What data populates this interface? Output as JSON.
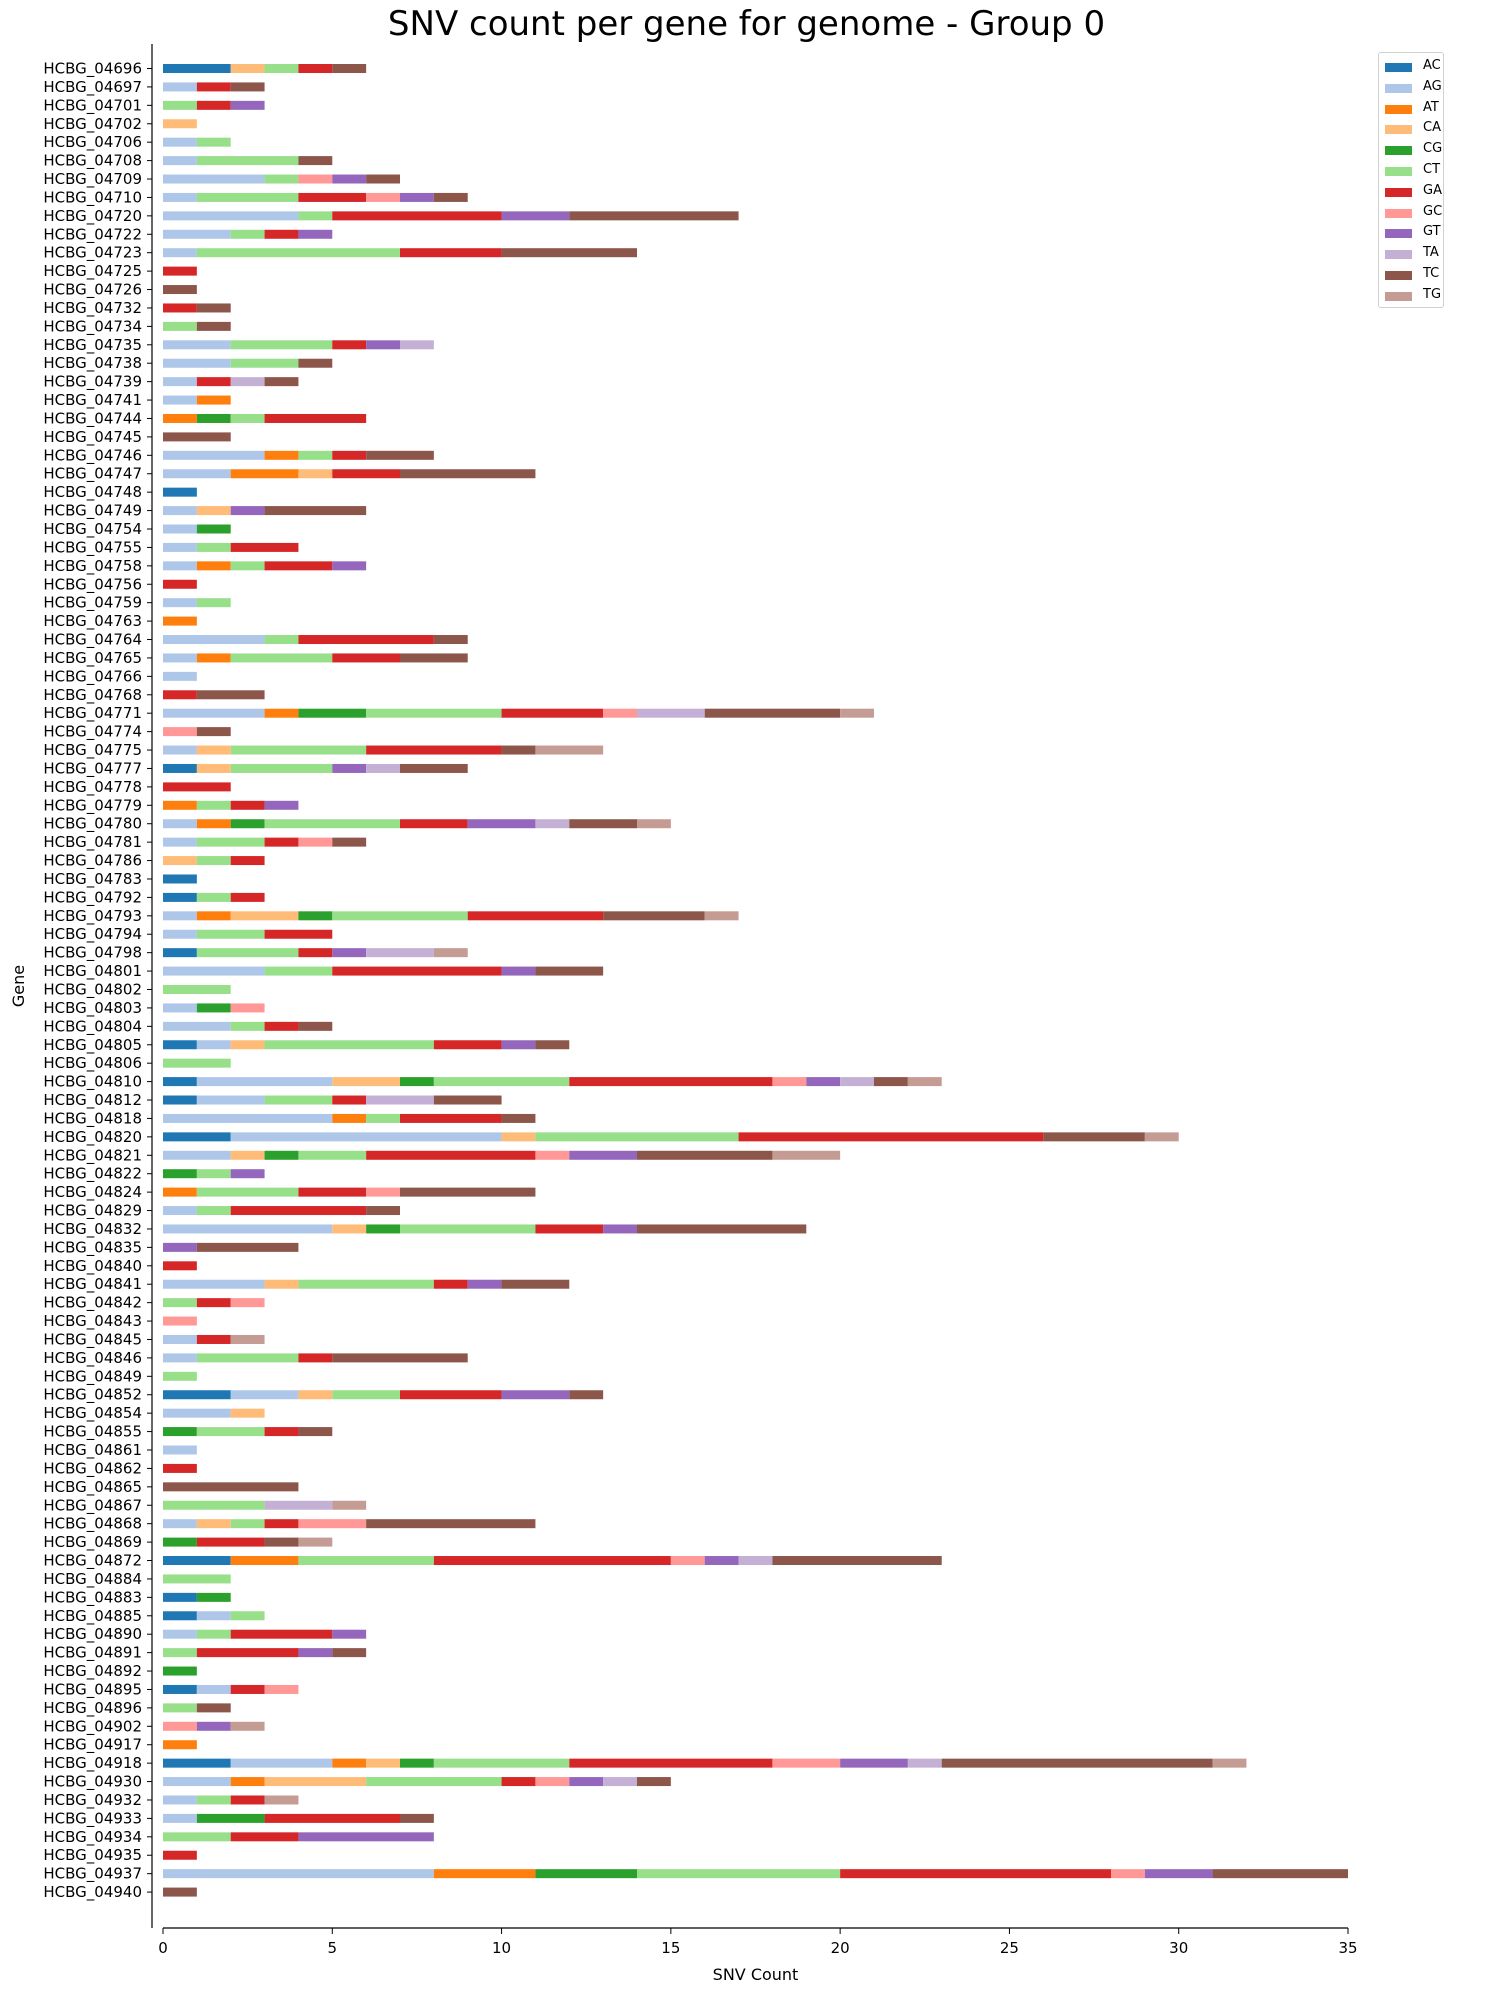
{
  "chart_data": {
    "type": "bar",
    "orientation": "horizontal",
    "stacked": true,
    "title": "SNV count per gene for genome - Group 0",
    "xlabel": "SNV Count",
    "ylabel": "Gene",
    "xlim": [
      0,
      35
    ],
    "xticks": [
      0,
      5,
      10,
      15,
      20,
      25,
      30,
      35
    ],
    "grid": false,
    "legend_position": "top-right",
    "series_order": [
      "AC",
      "AG",
      "AT",
      "CA",
      "CG",
      "CT",
      "GA",
      "GC",
      "GT",
      "TA",
      "TC",
      "TG"
    ],
    "colors": {
      "AC": "#1f77b4",
      "AG": "#aec7e8",
      "AT": "#ff7f0e",
      "CA": "#ffbb78",
      "CG": "#2ca02c",
      "CT": "#98df8a",
      "GA": "#d62728",
      "GC": "#ff9896",
      "GT": "#9467bd",
      "TA": "#c5b0d5",
      "TC": "#8c564b",
      "TG": "#c49c94"
    },
    "genes": [
      {
        "name": "HCBG_04696",
        "counts": {
          "AC": 2,
          "CA": 1,
          "CT": 1,
          "GA": 1,
          "TC": 1
        }
      },
      {
        "name": "HCBG_04697",
        "counts": {
          "AG": 1,
          "GA": 1,
          "TC": 1
        }
      },
      {
        "name": "HCBG_04701",
        "counts": {
          "CT": 1,
          "GA": 1,
          "GT": 1
        }
      },
      {
        "name": "HCBG_04702",
        "counts": {
          "CA": 1
        }
      },
      {
        "name": "HCBG_04706",
        "counts": {
          "AG": 1,
          "CT": 1
        }
      },
      {
        "name": "HCBG_04708",
        "counts": {
          "AG": 1,
          "CT": 3,
          "TC": 1
        }
      },
      {
        "name": "HCBG_04709",
        "counts": {
          "AG": 3,
          "CT": 1,
          "GC": 1,
          "GT": 1,
          "TC": 1
        }
      },
      {
        "name": "HCBG_04710",
        "counts": {
          "AG": 1,
          "CT": 3,
          "GA": 2,
          "GC": 1,
          "GT": 1,
          "TC": 1
        }
      },
      {
        "name": "HCBG_04720",
        "counts": {
          "AG": 4,
          "CT": 1,
          "GA": 5,
          "GT": 2,
          "TC": 5
        }
      },
      {
        "name": "HCBG_04722",
        "counts": {
          "AG": 2,
          "CT": 1,
          "GA": 1,
          "GT": 1
        }
      },
      {
        "name": "HCBG_04723",
        "counts": {
          "AG": 1,
          "CT": 6,
          "GA": 3,
          "TC": 4
        }
      },
      {
        "name": "HCBG_04725",
        "counts": {
          "GA": 1
        }
      },
      {
        "name": "HCBG_04726",
        "counts": {
          "TC": 1
        }
      },
      {
        "name": "HCBG_04732",
        "counts": {
          "GA": 1,
          "TC": 1
        }
      },
      {
        "name": "HCBG_04734",
        "counts": {
          "CT": 1,
          "TC": 1
        }
      },
      {
        "name": "HCBG_04735",
        "counts": {
          "AG": 2,
          "CT": 3,
          "GA": 1,
          "GT": 1,
          "TA": 1
        }
      },
      {
        "name": "HCBG_04738",
        "counts": {
          "AG": 2,
          "CT": 2,
          "TC": 1
        }
      },
      {
        "name": "HCBG_04739",
        "counts": {
          "AG": 1,
          "GA": 1,
          "TA": 1,
          "TC": 1
        }
      },
      {
        "name": "HCBG_04741",
        "counts": {
          "AG": 1,
          "AT": 1
        }
      },
      {
        "name": "HCBG_04744",
        "counts": {
          "AT": 1,
          "CG": 1,
          "CT": 1,
          "GA": 3
        }
      },
      {
        "name": "HCBG_04745",
        "counts": {
          "TC": 2
        }
      },
      {
        "name": "HCBG_04746",
        "counts": {
          "AG": 3,
          "AT": 1,
          "CT": 1,
          "GA": 1,
          "TC": 2
        }
      },
      {
        "name": "HCBG_04747",
        "counts": {
          "AG": 2,
          "AT": 2,
          "CA": 1,
          "GA": 2,
          "TC": 4
        }
      },
      {
        "name": "HCBG_04748",
        "counts": {
          "AC": 1
        }
      },
      {
        "name": "HCBG_04749",
        "counts": {
          "AG": 1,
          "CA": 1,
          "GT": 1,
          "TC": 3
        }
      },
      {
        "name": "HCBG_04754",
        "counts": {
          "AG": 1,
          "CG": 1
        }
      },
      {
        "name": "HCBG_04755",
        "counts": {
          "AG": 1,
          "CT": 1,
          "GA": 2
        }
      },
      {
        "name": "HCBG_04758",
        "counts": {
          "AG": 1,
          "AT": 1,
          "CT": 1,
          "GA": 2,
          "GT": 1
        }
      },
      {
        "name": "HCBG_04756",
        "counts": {
          "GA": 1
        }
      },
      {
        "name": "HCBG_04759",
        "counts": {
          "AG": 1,
          "CT": 1
        }
      },
      {
        "name": "HCBG_04763",
        "counts": {
          "AT": 1
        }
      },
      {
        "name": "HCBG_04764",
        "counts": {
          "AG": 3,
          "CT": 1,
          "GA": 4,
          "TC": 1
        }
      },
      {
        "name": "HCBG_04765",
        "counts": {
          "AG": 1,
          "AT": 1,
          "CT": 3,
          "GA": 2,
          "TC": 2
        }
      },
      {
        "name": "HCBG_04766",
        "counts": {
          "AG": 1
        }
      },
      {
        "name": "HCBG_04768",
        "counts": {
          "GA": 1,
          "TC": 2
        }
      },
      {
        "name": "HCBG_04771",
        "counts": {
          "AG": 3,
          "AT": 1,
          "CG": 2,
          "CT": 4,
          "GA": 3,
          "GC": 1,
          "TA": 2,
          "TC": 4,
          "TG": 1
        }
      },
      {
        "name": "HCBG_04774",
        "counts": {
          "GC": 1,
          "TC": 1
        }
      },
      {
        "name": "HCBG_04775",
        "counts": {
          "AG": 1,
          "CA": 1,
          "CT": 4,
          "GA": 4,
          "TC": 1,
          "TG": 2
        }
      },
      {
        "name": "HCBG_04777",
        "counts": {
          "AC": 1,
          "CA": 1,
          "CT": 3,
          "GT": 1,
          "TA": 1,
          "TC": 2
        }
      },
      {
        "name": "HCBG_04778",
        "counts": {
          "GA": 2
        }
      },
      {
        "name": "HCBG_04779",
        "counts": {
          "AT": 1,
          "CT": 1,
          "GA": 1,
          "GT": 1
        }
      },
      {
        "name": "HCBG_04780",
        "counts": {
          "AG": 1,
          "AT": 1,
          "CG": 1,
          "CT": 4,
          "GA": 2,
          "GT": 2,
          "TA": 1,
          "TC": 2,
          "TG": 1
        }
      },
      {
        "name": "HCBG_04781",
        "counts": {
          "AG": 1,
          "CT": 2,
          "GA": 1,
          "GC": 1,
          "TC": 1
        }
      },
      {
        "name": "HCBG_04786",
        "counts": {
          "CA": 1,
          "CT": 1,
          "GA": 1
        }
      },
      {
        "name": "HCBG_04783",
        "counts": {
          "AC": 1
        }
      },
      {
        "name": "HCBG_04792",
        "counts": {
          "AC": 1,
          "CT": 1,
          "GA": 1
        }
      },
      {
        "name": "HCBG_04793",
        "counts": {
          "AG": 1,
          "AT": 1,
          "CA": 2,
          "CG": 1,
          "CT": 4,
          "GA": 4,
          "TC": 3,
          "TG": 1
        }
      },
      {
        "name": "HCBG_04794",
        "counts": {
          "AG": 1,
          "CT": 2,
          "GA": 2
        }
      },
      {
        "name": "HCBG_04798",
        "counts": {
          "AC": 1,
          "CT": 3,
          "GA": 1,
          "GT": 1,
          "TA": 2,
          "TG": 1
        }
      },
      {
        "name": "HCBG_04801",
        "counts": {
          "AG": 3,
          "CT": 2,
          "GA": 5,
          "GT": 1,
          "TC": 2
        }
      },
      {
        "name": "HCBG_04802",
        "counts": {
          "CT": 2
        }
      },
      {
        "name": "HCBG_04803",
        "counts": {
          "AG": 1,
          "CG": 1,
          "GC": 1
        }
      },
      {
        "name": "HCBG_04804",
        "counts": {
          "AG": 2,
          "CT": 1,
          "GA": 1,
          "TC": 1
        }
      },
      {
        "name": "HCBG_04805",
        "counts": {
          "AC": 1,
          "AG": 1,
          "CA": 1,
          "CT": 5,
          "GA": 2,
          "GT": 1,
          "TC": 1
        }
      },
      {
        "name": "HCBG_04806",
        "counts": {
          "CT": 2
        }
      },
      {
        "name": "HCBG_04810",
        "counts": {
          "AC": 1,
          "AG": 4,
          "CA": 2,
          "CG": 1,
          "CT": 4,
          "GA": 6,
          "GC": 1,
          "GT": 1,
          "TA": 1,
          "TC": 1,
          "TG": 1
        }
      },
      {
        "name": "HCBG_04812",
        "counts": {
          "AC": 1,
          "AG": 2,
          "CT": 2,
          "GA": 1,
          "TA": 2,
          "TC": 2
        }
      },
      {
        "name": "HCBG_04818",
        "counts": {
          "AG": 5,
          "AT": 1,
          "CT": 1,
          "GA": 3,
          "TC": 1
        }
      },
      {
        "name": "HCBG_04820",
        "counts": {
          "AC": 2,
          "AG": 8,
          "CA": 1,
          "CT": 6,
          "GA": 9,
          "TC": 3,
          "TG": 1
        }
      },
      {
        "name": "HCBG_04821",
        "counts": {
          "AG": 2,
          "CA": 1,
          "CG": 1,
          "CT": 2,
          "GA": 5,
          "GC": 1,
          "GT": 2,
          "TC": 4,
          "TG": 2
        }
      },
      {
        "name": "HCBG_04822",
        "counts": {
          "CG": 1,
          "CT": 1,
          "GT": 1
        }
      },
      {
        "name": "HCBG_04824",
        "counts": {
          "AT": 1,
          "CT": 3,
          "GA": 2,
          "GC": 1,
          "TC": 4
        }
      },
      {
        "name": "HCBG_04829",
        "counts": {
          "AG": 1,
          "CT": 1,
          "GA": 4,
          "TC": 1
        }
      },
      {
        "name": "HCBG_04832",
        "counts": {
          "AG": 5,
          "CA": 1,
          "CG": 1,
          "CT": 4,
          "GA": 2,
          "GT": 1,
          "TC": 5
        }
      },
      {
        "name": "HCBG_04835",
        "counts": {
          "GT": 1,
          "TC": 3
        }
      },
      {
        "name": "HCBG_04840",
        "counts": {
          "GA": 1
        }
      },
      {
        "name": "HCBG_04841",
        "counts": {
          "AG": 3,
          "CA": 1,
          "CT": 4,
          "GA": 1,
          "GT": 1,
          "TC": 2
        }
      },
      {
        "name": "HCBG_04842",
        "counts": {
          "CT": 1,
          "GA": 1,
          "GC": 1
        }
      },
      {
        "name": "HCBG_04843",
        "counts": {
          "GC": 1
        }
      },
      {
        "name": "HCBG_04845",
        "counts": {
          "AG": 1,
          "GA": 1,
          "TG": 1
        }
      },
      {
        "name": "HCBG_04846",
        "counts": {
          "AG": 1,
          "CT": 3,
          "GA": 1,
          "TC": 4
        }
      },
      {
        "name": "HCBG_04849",
        "counts": {
          "CT": 1
        }
      },
      {
        "name": "HCBG_04852",
        "counts": {
          "AC": 2,
          "AG": 2,
          "CA": 1,
          "CT": 2,
          "GA": 3,
          "GT": 2,
          "TC": 1
        }
      },
      {
        "name": "HCBG_04854",
        "counts": {
          "AG": 2,
          "CA": 1
        }
      },
      {
        "name": "HCBG_04855",
        "counts": {
          "CG": 1,
          "CT": 2,
          "GA": 1,
          "TC": 1
        }
      },
      {
        "name": "HCBG_04861",
        "counts": {
          "AG": 1
        }
      },
      {
        "name": "HCBG_04862",
        "counts": {
          "GA": 1
        }
      },
      {
        "name": "HCBG_04865",
        "counts": {
          "TC": 4
        }
      },
      {
        "name": "HCBG_04867",
        "counts": {
          "CT": 3,
          "TA": 2,
          "TG": 1
        }
      },
      {
        "name": "HCBG_04868",
        "counts": {
          "AG": 1,
          "CA": 1,
          "CT": 1,
          "GA": 1,
          "GC": 2,
          "TC": 5
        }
      },
      {
        "name": "HCBG_04869",
        "counts": {
          "CG": 1,
          "GA": 2,
          "TC": 1,
          "TG": 1
        }
      },
      {
        "name": "HCBG_04872",
        "counts": {
          "AC": 2,
          "AT": 2,
          "CT": 4,
          "GA": 7,
          "GC": 1,
          "GT": 1,
          "TA": 1,
          "TC": 5
        }
      },
      {
        "name": "HCBG_04884",
        "counts": {
          "CT": 2
        }
      },
      {
        "name": "HCBG_04883",
        "counts": {
          "AC": 1,
          "CG": 1
        }
      },
      {
        "name": "HCBG_04885",
        "counts": {
          "AC": 1,
          "AG": 1,
          "CT": 1
        }
      },
      {
        "name": "HCBG_04890",
        "counts": {
          "AG": 1,
          "CT": 1,
          "GA": 3,
          "GT": 1
        }
      },
      {
        "name": "HCBG_04891",
        "counts": {
          "CT": 1,
          "GA": 3,
          "GT": 1,
          "TC": 1
        }
      },
      {
        "name": "HCBG_04892",
        "counts": {
          "CG": 1
        }
      },
      {
        "name": "HCBG_04895",
        "counts": {
          "AC": 1,
          "AG": 1,
          "GA": 1,
          "GC": 1
        }
      },
      {
        "name": "HCBG_04896",
        "counts": {
          "CT": 1,
          "TC": 1
        }
      },
      {
        "name": "HCBG_04902",
        "counts": {
          "GC": 1,
          "GT": 1,
          "TG": 1
        }
      },
      {
        "name": "HCBG_04917",
        "counts": {
          "AT": 1
        }
      },
      {
        "name": "HCBG_04918",
        "counts": {
          "AC": 2,
          "AG": 3,
          "AT": 1,
          "CA": 1,
          "CG": 1,
          "CT": 4,
          "GA": 6,
          "GC": 2,
          "GT": 2,
          "TA": 1,
          "TC": 8,
          "TG": 1
        }
      },
      {
        "name": "HCBG_04930",
        "counts": {
          "AG": 2,
          "AT": 1,
          "CA": 3,
          "CT": 4,
          "GA": 1,
          "GC": 1,
          "GT": 1,
          "TA": 1,
          "TC": 1
        }
      },
      {
        "name": "HCBG_04932",
        "counts": {
          "AG": 1,
          "CT": 1,
          "GA": 1,
          "TG": 1
        }
      },
      {
        "name": "HCBG_04933",
        "counts": {
          "AG": 1,
          "CG": 2,
          "GA": 4,
          "TC": 1
        }
      },
      {
        "name": "HCBG_04934",
        "counts": {
          "CT": 2,
          "GA": 2,
          "GT": 4
        }
      },
      {
        "name": "HCBG_04935",
        "counts": {
          "GA": 1
        }
      },
      {
        "name": "HCBG_04937",
        "counts": {
          "AG": 8,
          "AT": 3,
          "CG": 3,
          "CT": 6,
          "GA": 8,
          "GC": 1,
          "GT": 2,
          "TC": 4
        }
      },
      {
        "name": "HCBG_04940",
        "counts": {
          "TC": 1
        }
      }
    ]
  }
}
